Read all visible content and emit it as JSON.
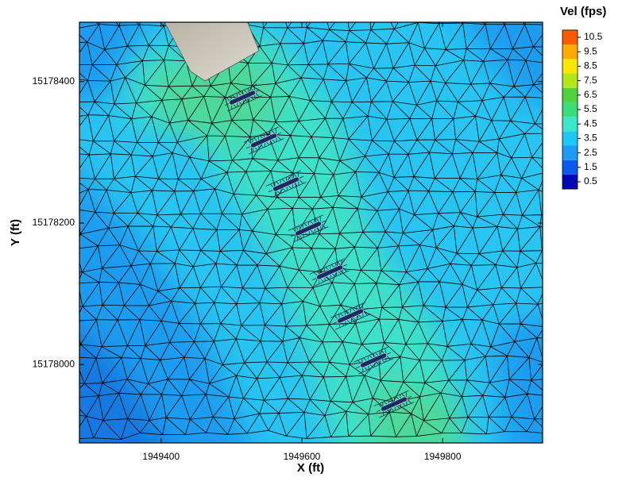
{
  "chart_data": {
    "type": "contour",
    "xlabel": "X (ft)",
    "ylabel": "Y (ft)",
    "xlim": [
      1949284,
      1949942
    ],
    "ylim": [
      15177889,
      15178484
    ],
    "xticks": [
      1949400,
      1949600,
      1949800
    ],
    "yticks": [
      15178000,
      15178200,
      15178400
    ],
    "colorbar": {
      "title": "Vel (fps)",
      "levels": [
        0.5,
        1.5,
        2.5,
        3.5,
        4.5,
        5.5,
        6.5,
        7.5,
        8.5,
        9.5,
        10.5
      ],
      "colors": [
        "#0008b8",
        "#0a5af0",
        "#1e9cf5",
        "#1ec8f5",
        "#3ce6c8",
        "#3cdc78",
        "#50d23c",
        "#b4e61e",
        "#ffe600",
        "#ffaa00",
        "#ff5a00"
      ]
    }
  }
}
